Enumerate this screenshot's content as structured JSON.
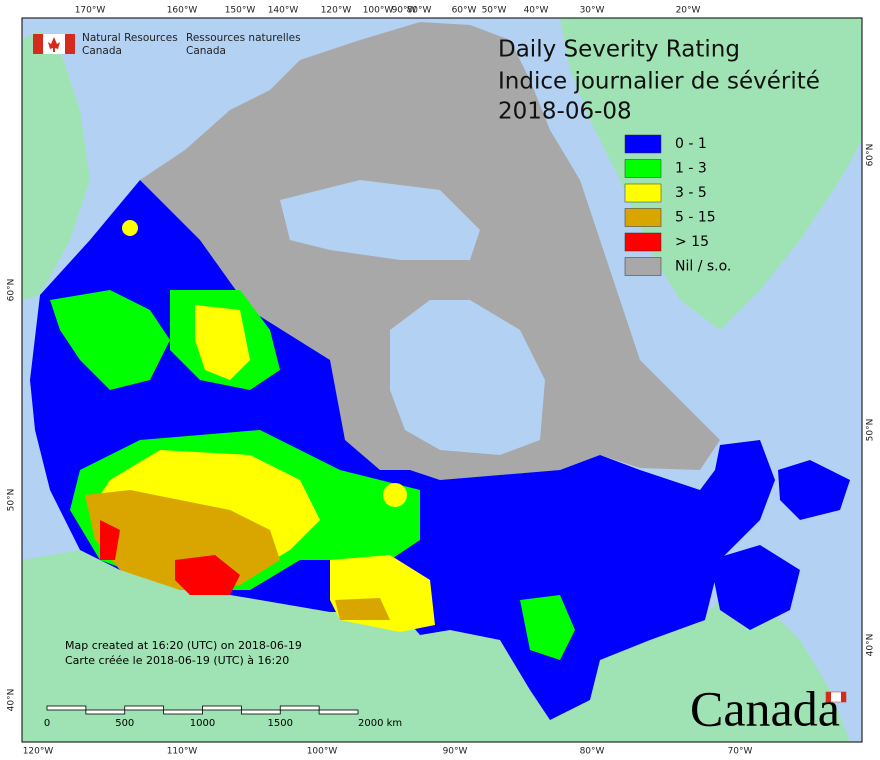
{
  "agency": {
    "en_line1": "Natural Resources",
    "en_line2": "Canada",
    "fr_line1": "Ressources naturelles",
    "fr_line2": "Canada"
  },
  "title": [
    "Daily Severity Rating",
    "Indice journalier de sévérité",
    "2018-06-08"
  ],
  "legend": [
    {
      "label": "0 - 1",
      "color": "#0000ff"
    },
    {
      "label": "1 - 3",
      "color": "#00ff00"
    },
    {
      "label": "3 - 5",
      "color": "#ffff00"
    },
    {
      "label": "5 - 15",
      "color": "#d9a600"
    },
    {
      "label": "> 15",
      "color": "#ff0000"
    },
    {
      "label": "Nil / s.o.",
      "color": "#a8a8a8"
    }
  ],
  "graticule": {
    "top": [
      "170°W",
      "160°W",
      "150°W",
      "140°W",
      "120°W",
      "100°W",
      "90°W",
      "80°W",
      "60°W",
      "50°W",
      "40°W",
      "30°W",
      "20°W"
    ],
    "bottom": [
      "120°W",
      "110°W",
      "100°W",
      "90°W",
      "80°W",
      "70°W"
    ],
    "left": [
      "60°N",
      "50°N",
      "40°N"
    ],
    "right": [
      "60°N",
      "50°N",
      "40°N"
    ]
  },
  "notes": [
    "Map created at 16:20 (UTC) on 2018-06-19",
    "Carte créée le 2018-06-19 (UTC) à 16:20"
  ],
  "scale_bar": [
    "0",
    "500",
    "1000",
    "1500",
    "2000 km"
  ],
  "wordmark": "Canada"
}
